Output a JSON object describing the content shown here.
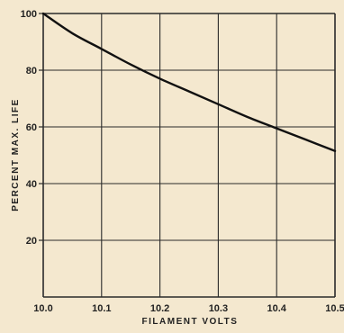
{
  "chart_data": {
    "type": "line",
    "title": "",
    "xlabel": "FILAMENT VOLTS",
    "ylabel": "PERCENT MAX. LIFE",
    "xlim": [
      10.0,
      10.5
    ],
    "ylim": [
      0,
      100
    ],
    "x_ticks": [
      "10.0",
      "10.1",
      "10.2",
      "10.3",
      "10.4",
      "10.5"
    ],
    "y_ticks": [
      "20",
      "40",
      "60",
      "80",
      "100"
    ],
    "grid": true,
    "legend": "none",
    "series": [
      {
        "x": [
          10.0,
          10.05,
          10.1,
          10.15,
          10.2,
          10.25,
          10.3,
          10.35,
          10.4,
          10.45,
          10.5
        ],
        "values": [
          100,
          93,
          87.5,
          82,
          77,
          72.5,
          68,
          63.5,
          59.5,
          55.5,
          51.5
        ]
      }
    ],
    "colors": {
      "background": "#f4e8cf",
      "grid": "#2a2a2a",
      "line": "#111111",
      "text": "#222222"
    }
  }
}
